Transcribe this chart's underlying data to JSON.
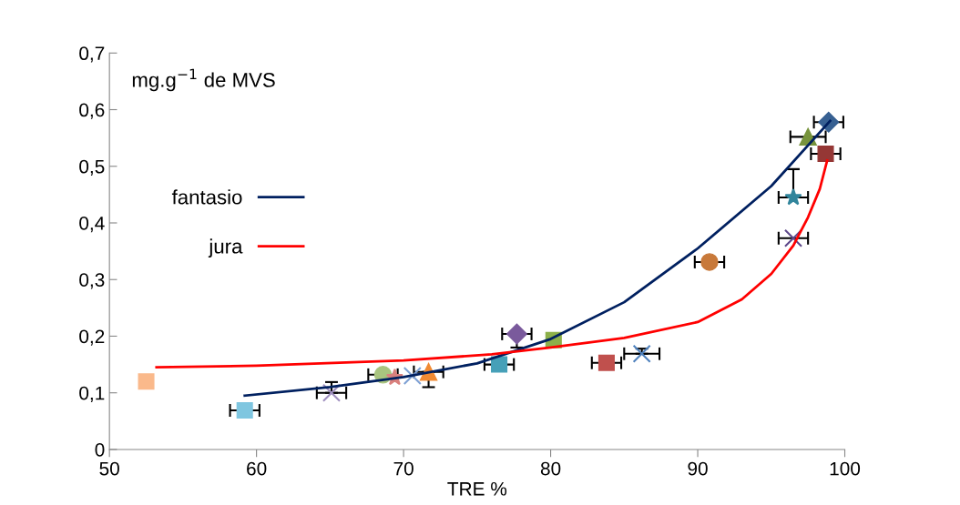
{
  "chart_data": {
    "type": "scatter",
    "ylabel": "mg.g$^{−1}$ de MVS",
    "xlabel": "TRE %",
    "xlim": [
      50,
      100
    ],
    "xticks": [
      50,
      60,
      70,
      80,
      90,
      100
    ],
    "ylim": [
      0,
      0.7
    ],
    "yticks": [
      {
        "value": 0,
        "label": "0"
      },
      {
        "value": 0.1,
        "label": "0,1"
      },
      {
        "value": 0.2,
        "label": "0,2"
      },
      {
        "value": 0.3,
        "label": "0,3"
      },
      {
        "value": 0.4,
        "label": "0,4"
      },
      {
        "value": 0.5,
        "label": "0,5"
      },
      {
        "value": 0.6,
        "label": "0,6"
      },
      {
        "value": 0.7,
        "label": "0,7"
      }
    ],
    "grid": false,
    "legend": "left",
    "series": [
      {
        "type": "line",
        "name": "fantasio",
        "color": "#002060",
        "x": [
          59.2,
          65,
          70,
          75,
          80,
          85,
          90,
          95,
          99
        ],
        "values": [
          0.095,
          0.11,
          0.128,
          0.152,
          0.195,
          0.26,
          0.355,
          0.465,
          0.58
        ]
      },
      {
        "type": "line",
        "name": "jura",
        "color": "#ff0000",
        "x": [
          53.2,
          60,
          70,
          76,
          80,
          85,
          90,
          93,
          95,
          96.5,
          97.5,
          98.3,
          98.8
        ],
        "values": [
          0.145,
          0.148,
          0.157,
          0.168,
          0.18,
          0.197,
          0.225,
          0.265,
          0.31,
          0.36,
          0.41,
          0.46,
          0.51
        ]
      },
      {
        "color": "#fab98b",
        "marker": "square",
        "x": [
          52.5
        ],
        "values": [
          0.12
        ]
      },
      {
        "color": "#7fc6e0",
        "marker": "square",
        "x": [
          59.2
        ],
        "values": [
          0.069
        ],
        "xerrors": [
          1.0
        ]
      },
      {
        "color": "#9f8fbf",
        "marker": "cross",
        "x": [
          65.1
        ],
        "values": [
          0.1
        ],
        "xerrors": [
          1.0
        ],
        "errors": [
          [
            0.1,
            0.119
          ]
        ]
      },
      {
        "color": "#a9c47f",
        "marker": "circle",
        "x": [
          68.6
        ],
        "values": [
          0.132
        ],
        "xerrors": [
          1.0
        ]
      },
      {
        "color": "#d9807d",
        "marker": "star",
        "x": [
          69.4
        ],
        "values": [
          0.127
        ]
      },
      {
        "color": "#7ea1d4",
        "marker": "cross",
        "x": [
          70.6
        ],
        "values": [
          0.13
        ]
      },
      {
        "color": "#f08a33",
        "marker": "triangle",
        "x": [
          71.7
        ],
        "values": [
          0.137
        ],
        "xerrors": [
          1.0
        ],
        "errors": [
          [
            0.11,
            0.137
          ]
        ]
      },
      {
        "color": "#46a0b8",
        "marker": "square",
        "x": [
          76.5
        ],
        "values": [
          0.15
        ],
        "xerrors": [
          1.0
        ]
      },
      {
        "color": "#7a5a9c",
        "marker": "diamond",
        "x": [
          77.7
        ],
        "values": [
          0.204
        ],
        "xerrors": [
          1.0
        ],
        "errors": [
          [
            0.18,
            0.204
          ]
        ]
      },
      {
        "color": "#8db04a",
        "marker": "square",
        "x": [
          80.2
        ],
        "values": [
          0.193
        ]
      },
      {
        "color": "#c0504d",
        "marker": "square",
        "x": [
          83.8
        ],
        "values": [
          0.153
        ],
        "xerrors": [
          1.0
        ]
      },
      {
        "color": "#4f81bd",
        "marker": "cross",
        "x": [
          86.2
        ],
        "values": [
          0.169
        ],
        "xerrors": [
          1.2
        ],
        "errors": [
          [
            0.169,
            0.178
          ]
        ]
      },
      {
        "color": "#c8793a",
        "marker": "circle",
        "x": [
          90.8
        ],
        "values": [
          0.331
        ],
        "xerrors": [
          1.0
        ]
      },
      {
        "color": "#5f4a8b",
        "marker": "cross",
        "x": [
          96.5
        ],
        "values": [
          0.373
        ],
        "xerrors": [
          1.0
        ]
      },
      {
        "color": "#31859c",
        "marker": "star",
        "x": [
          96.5
        ],
        "values": [
          0.445
        ],
        "xerrors": [
          1.0
        ],
        "errors": [
          [
            0.445,
            0.495
          ]
        ]
      },
      {
        "color": "#77933c",
        "marker": "triangle",
        "x": [
          97.5
        ],
        "values": [
          0.552
        ],
        "xerrors": [
          1.2
        ]
      },
      {
        "color": "#953735",
        "marker": "square",
        "x": [
          98.7
        ],
        "values": [
          0.522
        ],
        "xerrors": [
          1.0
        ]
      },
      {
        "color": "#376092",
        "marker": "diamond",
        "x": [
          98.9
        ],
        "values": [
          0.578
        ],
        "xerrors": [
          1.0
        ]
      }
    ]
  }
}
